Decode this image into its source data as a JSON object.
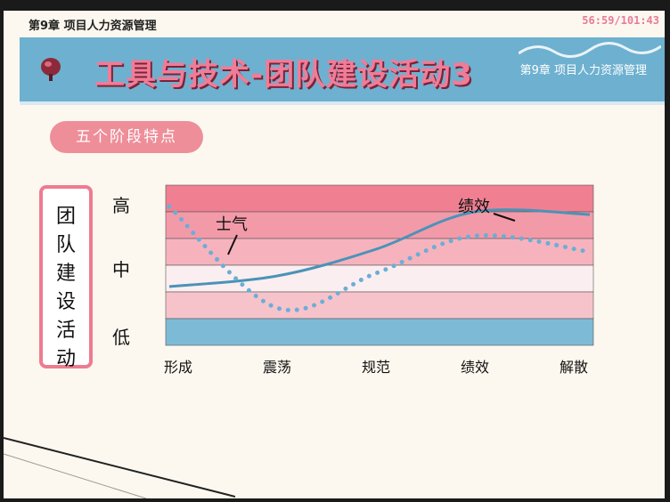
{
  "header": {
    "chapter": "第9章 项目人力资源管理",
    "timer": "56:59/101:43"
  },
  "banner": {
    "title": "工具与技术-团队建设活动3",
    "chapter": "第9章 项目人力资源管理"
  },
  "section_pill": "五个阶段特点",
  "side_label": [
    "团",
    "队",
    "建",
    "设",
    "活",
    "动"
  ],
  "chart_data": {
    "type": "line",
    "categories": [
      "形成",
      "震荡",
      "规范",
      "绩效",
      "解散"
    ],
    "y_levels": [
      "低",
      "中",
      "高"
    ],
    "series": [
      {
        "name": "绩效",
        "style": "solid",
        "color": "#4a93b8",
        "values": [
          1.1,
          1.3,
          1.8,
          2.5,
          2.45
        ]
      },
      {
        "name": "士气",
        "style": "dotted",
        "color": "#6aaed6",
        "values": [
          2.6,
          0.7,
          1.35,
          2.05,
          1.75
        ]
      }
    ],
    "bands": [
      {
        "color": "#f07f92"
      },
      {
        "color": "#f39aa9"
      },
      {
        "color": "#f6b3bd"
      },
      {
        "color": "#fbeef0"
      },
      {
        "color": "#f7c3cb"
      },
      {
        "color": "#7dbad6"
      }
    ]
  },
  "colors": {
    "banner": "#6eb0cf",
    "accent": "#f07c98",
    "pill": "#ee8e99"
  }
}
